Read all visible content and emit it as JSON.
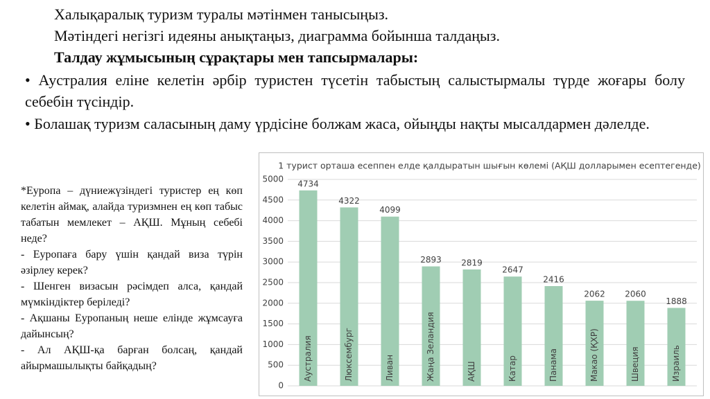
{
  "text": {
    "intro": [
      "Халықаралық туризм туралы мәтінмен танысыңыз.",
      "Мәтіндегі негізгі идеяны анықтаңыз, диаграмма бойынша талдаңыз.",
      "Талдау жұмысының сұрақтары мен тапсырмалары:"
    ],
    "bullets": [
      "• Аустралия еліне келетін әрбір туристен түсетін табыстың салыстырмалы түрде жоғары болу себебін түсіндір.",
      "• Болашақ туризм саласының даму үрдісіне болжам жаса, ойыңды нақты мысалдармен дәлелде."
    ]
  },
  "questions": [
    "*Еуропа – дүниежүзіндегі туристер ең көп келетін аймақ, алайда туризмнен ең көп табыс табатын мемлекет – АҚШ. Мұның себебі неде?",
    "- Еуропаға бару үшін қандай виза түрін әзірлеу керек?",
    "- Шенген визасын рәсімдеп алса, қандай мүмкіндіктер беріледі?",
    "- Ақшаны Еуропаның неше елінде жұмсауға дайынсың?",
    "- Ал АҚШ-қа барған болсаң, қандай айырмашылықты байқадың?"
  ],
  "chart_data": {
    "type": "bar",
    "title": "1 турист орташа есеппен елде қалдыратын шығын көлемі (АҚШ долларымен есептегенде)",
    "categories": [
      "Аустралия",
      "Люксембург",
      "Ливан",
      "Жаңа Зеландия",
      "АҚШ",
      "Катар",
      "Панама",
      "Макао (ҚХР)",
      "Швеция",
      "Израиль"
    ],
    "values": [
      4734,
      4322,
      4099,
      2893,
      2819,
      2647,
      2416,
      2062,
      2060,
      1888
    ],
    "color": "#a0cdb3",
    "ylim": [
      0,
      5000
    ],
    "yticks": [
      0,
      500,
      1000,
      1500,
      2000,
      2500,
      3000,
      3500,
      4000,
      4500,
      5000
    ],
    "grid": true
  }
}
